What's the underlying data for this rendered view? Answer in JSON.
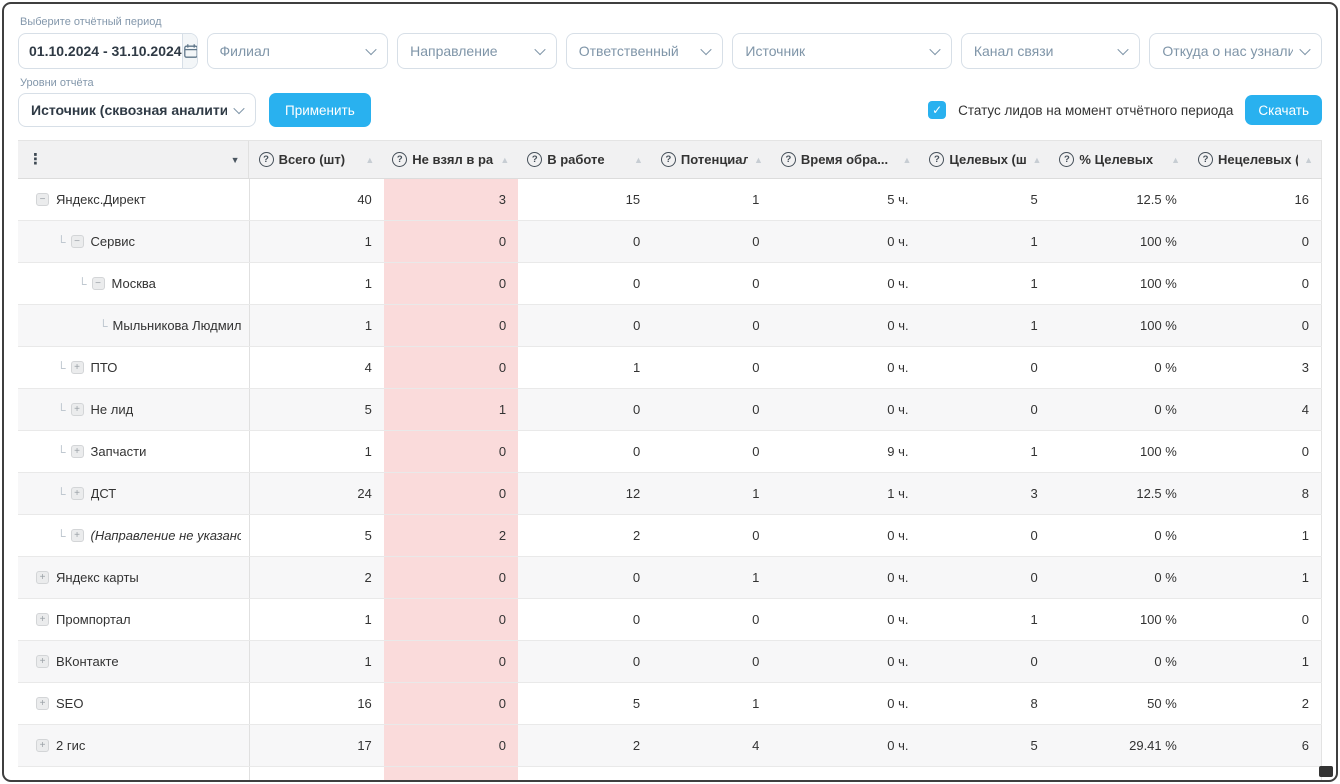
{
  "colors": {
    "accent": "#29b1ef",
    "pink_column": "#fadbdb"
  },
  "icons": {
    "kebab": "⋮",
    "column_menu_triangle": "▼",
    "sort_up": "▲",
    "question": "?",
    "check": "✓",
    "branch": "└",
    "plus": "+",
    "minus": "−"
  },
  "filters": {
    "period_label": "Выберите отчётный период",
    "period_value": "01.10.2024 - 31.10.2024",
    "dropdowns": [
      "Филиал",
      "Направление",
      "Ответственный",
      "Источник",
      "Канал связи",
      "Откуда о нас узнали"
    ],
    "levels_label": "Уровни отчёта",
    "levels_value": "Источник (сквозная аналитика), Нап",
    "apply_label": "Применить",
    "status_checkbox_label": "Статус лидов на момент отчётного периода",
    "status_checkbox_checked": true,
    "download_label": "Скачать"
  },
  "table": {
    "columns": [
      "Всего (шт)",
      "Не взял в ра...",
      "В работе",
      "Потенциаль...",
      "Время обра...",
      "Целевых (шт)",
      "% Целевых",
      "Нецелевых (..."
    ],
    "column_keys": [
      "total",
      "not-taken",
      "in-progress",
      "potential",
      "processing-time",
      "target",
      "target-percent",
      "non-target"
    ],
    "highlighted_column_index": 1,
    "rows": [
      {
        "name": "Яндекс.Директ",
        "level": 0,
        "icon": "collapse",
        "italic": false,
        "values": [
          "40",
          "3",
          "15",
          "1",
          "5 ч.",
          "5",
          "12.5 %",
          "16"
        ]
      },
      {
        "name": "Сервис",
        "level": 1,
        "icon": "collapse",
        "italic": false,
        "values": [
          "1",
          "0",
          "0",
          "0",
          "0 ч.",
          "1",
          "100 %",
          "0"
        ]
      },
      {
        "name": "Москва",
        "level": 2,
        "icon": "collapse",
        "italic": false,
        "values": [
          "1",
          "0",
          "0",
          "0",
          "0 ч.",
          "1",
          "100 %",
          "0"
        ]
      },
      {
        "name": "Мыльникова Людмила",
        "level": 3,
        "icon": "none",
        "italic": false,
        "values": [
          "1",
          "0",
          "0",
          "0",
          "0 ч.",
          "1",
          "100 %",
          "0"
        ]
      },
      {
        "name": "ПТО",
        "level": 1,
        "icon": "expand",
        "italic": false,
        "values": [
          "4",
          "0",
          "1",
          "0",
          "0 ч.",
          "0",
          "0 %",
          "3"
        ]
      },
      {
        "name": "Не лид",
        "level": 1,
        "icon": "expand",
        "italic": false,
        "values": [
          "5",
          "1",
          "0",
          "0",
          "0 ч.",
          "0",
          "0 %",
          "4"
        ]
      },
      {
        "name": "Запчасти",
        "level": 1,
        "icon": "expand",
        "italic": false,
        "values": [
          "1",
          "0",
          "0",
          "0",
          "9 ч.",
          "1",
          "100 %",
          "0"
        ]
      },
      {
        "name": "ДСТ",
        "level": 1,
        "icon": "expand",
        "italic": false,
        "values": [
          "24",
          "0",
          "12",
          "1",
          "1 ч.",
          "3",
          "12.5 %",
          "8"
        ]
      },
      {
        "name": "(Направление не указано)",
        "level": 1,
        "icon": "expand",
        "italic": true,
        "values": [
          "5",
          "2",
          "2",
          "0",
          "0 ч.",
          "0",
          "0 %",
          "1"
        ]
      },
      {
        "name": "Яндекс карты",
        "level": 0,
        "icon": "expand",
        "italic": false,
        "values": [
          "2",
          "0",
          "0",
          "1",
          "0 ч.",
          "0",
          "0 %",
          "1"
        ]
      },
      {
        "name": "Промпортал",
        "level": 0,
        "icon": "expand",
        "italic": false,
        "values": [
          "1",
          "0",
          "0",
          "0",
          "0 ч.",
          "1",
          "100 %",
          "0"
        ]
      },
      {
        "name": "ВКонтакте",
        "level": 0,
        "icon": "expand",
        "italic": false,
        "values": [
          "1",
          "0",
          "0",
          "0",
          "0 ч.",
          "0",
          "0 %",
          "1"
        ]
      },
      {
        "name": "SEO",
        "level": 0,
        "icon": "expand",
        "italic": false,
        "values": [
          "16",
          "0",
          "5",
          "1",
          "0 ч.",
          "8",
          "50 %",
          "2"
        ]
      },
      {
        "name": "2 гис",
        "level": 0,
        "icon": "expand",
        "italic": false,
        "values": [
          "17",
          "0",
          "2",
          "4",
          "0 ч.",
          "5",
          "29.41 %",
          "6"
        ]
      }
    ]
  }
}
